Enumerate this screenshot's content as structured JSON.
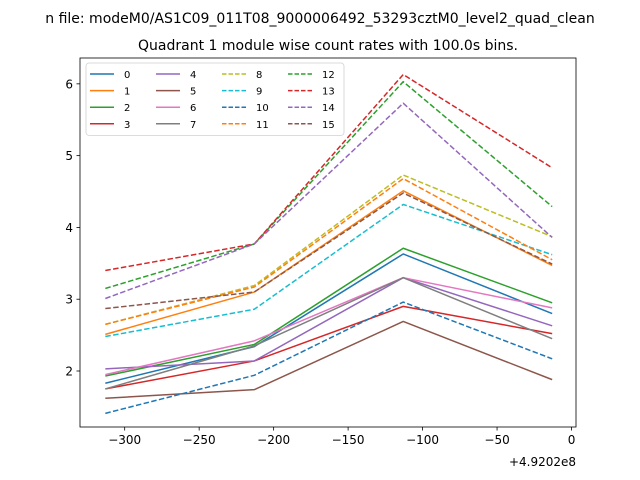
{
  "chart_data": {
    "type": "line",
    "suptitle": "n file: modeM0/AS1C09_011T08_9000006492_53293cztM0_level2_quad_clean",
    "title": "Quadrant 1 module wise count rates with 100.0s bins.",
    "xlabel": "",
    "ylabel": "",
    "x_offset_label": "+4.9202e8",
    "x": [
      -313,
      -213,
      -113,
      -13
    ],
    "xlim": [
      -330,
      3
    ],
    "ylim": [
      1.22,
      6.36
    ],
    "xticks": [
      -300,
      -250,
      -200,
      -150,
      -100,
      -50,
      0
    ],
    "xtick_labels": [
      "−300",
      "−250",
      "−200",
      "−150",
      "−100",
      "−50",
      "0"
    ],
    "yticks": [
      2,
      3,
      4,
      5,
      6
    ],
    "ytick_labels": [
      "2",
      "3",
      "4",
      "5",
      "6"
    ],
    "legend_position": "upper-left",
    "legend_columns": 4,
    "series": [
      {
        "name": "0",
        "color": "#1f77b4",
        "dash": "solid",
        "values": [
          1.83,
          2.34,
          3.63,
          2.8
        ]
      },
      {
        "name": "1",
        "color": "#ff7f0e",
        "dash": "solid",
        "values": [
          2.51,
          3.1,
          4.51,
          3.47
        ]
      },
      {
        "name": "2",
        "color": "#2ca02c",
        "dash": "solid",
        "values": [
          1.93,
          2.37,
          3.71,
          2.95
        ]
      },
      {
        "name": "3",
        "color": "#d62728",
        "dash": "solid",
        "values": [
          1.75,
          2.14,
          2.9,
          2.52
        ]
      },
      {
        "name": "4",
        "color": "#9467bd",
        "dash": "solid",
        "values": [
          2.03,
          2.14,
          3.3,
          2.63
        ]
      },
      {
        "name": "5",
        "color": "#8c564b",
        "dash": "solid",
        "values": [
          1.62,
          1.74,
          2.69,
          1.88
        ]
      },
      {
        "name": "6",
        "color": "#e377c2",
        "dash": "solid",
        "values": [
          1.95,
          2.42,
          3.3,
          2.88
        ]
      },
      {
        "name": "7",
        "color": "#7f7f7f",
        "dash": "solid",
        "values": [
          1.75,
          2.35,
          3.3,
          2.45
        ]
      },
      {
        "name": "8",
        "color": "#bcbd22",
        "dash": "dashed",
        "values": [
          2.65,
          3.19,
          4.73,
          3.87
        ]
      },
      {
        "name": "9",
        "color": "#17becf",
        "dash": "dashed",
        "values": [
          2.48,
          2.86,
          4.32,
          3.62
        ]
      },
      {
        "name": "10",
        "color": "#1f77b4",
        "dash": "dashed",
        "values": [
          1.41,
          1.94,
          2.96,
          2.17
        ]
      },
      {
        "name": "11",
        "color": "#ff7f0e",
        "dash": "dashed",
        "values": [
          2.65,
          3.17,
          4.68,
          3.55
        ]
      },
      {
        "name": "12",
        "color": "#2ca02c",
        "dash": "dashed",
        "values": [
          3.15,
          3.77,
          6.03,
          4.29
        ]
      },
      {
        "name": "13",
        "color": "#d62728",
        "dash": "dashed",
        "values": [
          3.4,
          3.77,
          6.13,
          4.83
        ]
      },
      {
        "name": "14",
        "color": "#9467bd",
        "dash": "dashed",
        "values": [
          3.01,
          3.77,
          5.73,
          3.86
        ]
      },
      {
        "name": "15",
        "color": "#8c564b",
        "dash": "dashed",
        "values": [
          2.87,
          3.1,
          4.48,
          3.49
        ]
      }
    ]
  }
}
